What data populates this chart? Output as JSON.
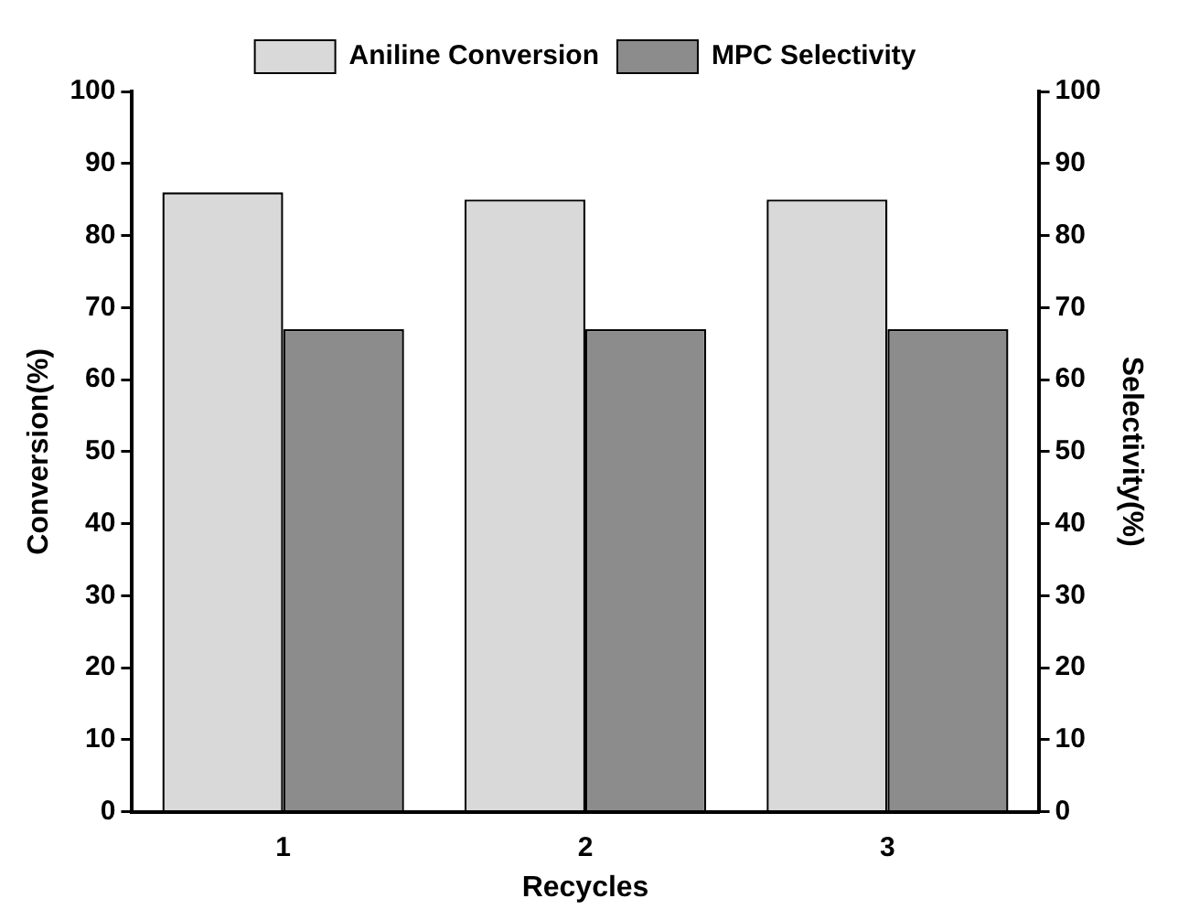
{
  "chart_data": {
    "type": "bar",
    "xlabel": "Recycles",
    "ylabel": "Conversion(%)",
    "y2label": "Selectivity(%)",
    "categories": [
      "1",
      "2",
      "3"
    ],
    "series": [
      {
        "name": "Aniline Conversion",
        "color": "#d9d9d9",
        "values": [
          86,
          85,
          85
        ]
      },
      {
        "name": "MPC Selectivity",
        "color": "#8c8c8c",
        "values": [
          67,
          67,
          67
        ]
      }
    ],
    "ylim": [
      0,
      100
    ],
    "yticks": [
      0,
      10,
      20,
      30,
      40,
      50,
      60,
      70,
      80,
      90,
      100
    ],
    "y2lim": [
      0,
      100
    ],
    "y2ticks": [
      0,
      10,
      20,
      30,
      40,
      50,
      60,
      70,
      80,
      90,
      100
    ],
    "legend": "top"
  }
}
